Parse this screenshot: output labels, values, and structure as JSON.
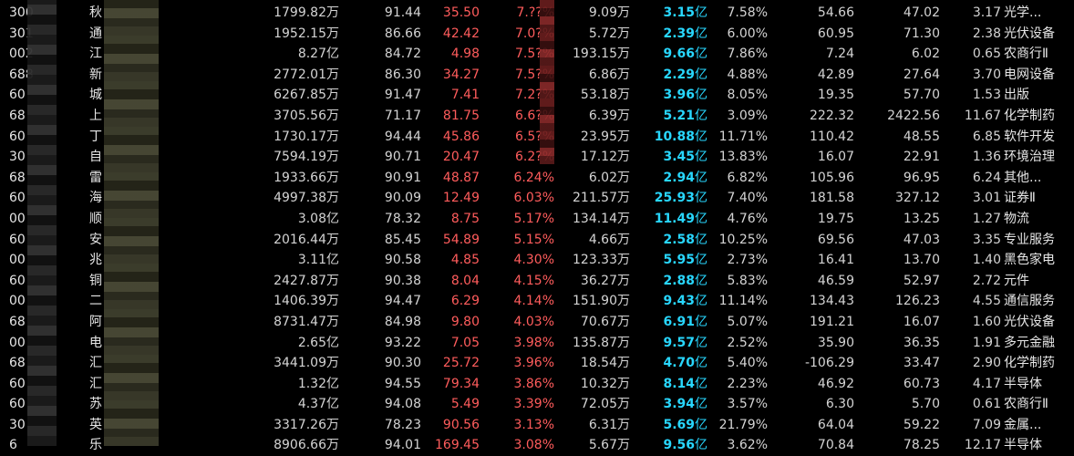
{
  "colors": {
    "background": "#000000",
    "text": "#d4d4d4",
    "up_red": "#ff5c5c",
    "cap_cyan": "#28d7ff"
  },
  "rows": [
    {
      "code": "300",
      "name": "秋",
      "amount": "1799.82万",
      "v1": "91.44",
      "price": "35.50",
      "pct": "7.??%",
      "vol": "9.09万",
      "cap": "3.15",
      "cap_unit": "亿",
      "rate": "7.58%",
      "m1": "54.66",
      "m2": "47.02",
      "m3": "3.17",
      "industry": "光学..."
    },
    {
      "code": "301",
      "name": "通",
      "amount": "1952.15万",
      "v1": "86.66",
      "price": "42.42",
      "pct": "7.0?%",
      "vol": "5.72万",
      "cap": "2.39",
      "cap_unit": "亿",
      "rate": "6.00%",
      "m1": "60.95",
      "m2": "71.30",
      "m3": "2.38",
      "industry": "光伏设备"
    },
    {
      "code": "002",
      "name": "江",
      "amount": "8.27亿",
      "v1": "84.72",
      "price": "4.98",
      "pct": "7.5?%",
      "vol": "193.15万",
      "cap": "9.66",
      "cap_unit": "亿",
      "rate": "7.86%",
      "m1": "7.24",
      "m2": "6.02",
      "m3": "0.65",
      "industry": "农商行Ⅱ"
    },
    {
      "code": "688",
      "name": "新",
      "amount": "2772.01万",
      "v1": "86.30",
      "price": "34.27",
      "pct": "7.5?%",
      "vol": "6.86万",
      "cap": "2.29",
      "cap_unit": "亿",
      "rate": "4.88%",
      "m1": "42.89",
      "m2": "27.64",
      "m3": "3.70",
      "industry": "电网设备"
    },
    {
      "code": "60",
      "name": "城",
      "amount": "6267.85万",
      "v1": "91.47",
      "price": "7.41",
      "pct": "7.2?%",
      "vol": "53.18万",
      "cap": "3.96",
      "cap_unit": "亿",
      "rate": "8.05%",
      "m1": "19.35",
      "m2": "57.70",
      "m3": "1.53",
      "industry": "出版"
    },
    {
      "code": "68",
      "name": "上",
      "amount": "3705.56万",
      "v1": "71.17",
      "price": "81.75",
      "pct": "6.6?%",
      "vol": "6.39万",
      "cap": "5.21",
      "cap_unit": "亿",
      "rate": "3.09%",
      "m1": "222.32",
      "m2": "2422.56",
      "m3": "11.67",
      "industry": "化学制药"
    },
    {
      "code": "60",
      "name": "丁",
      "amount": "1730.17万",
      "v1": "94.44",
      "price": "45.86",
      "pct": "6.5?%",
      "vol": "23.95万",
      "cap": "10.88",
      "cap_unit": "亿",
      "rate": "11.71%",
      "m1": "110.42",
      "m2": "48.55",
      "m3": "6.85",
      "industry": "软件开发"
    },
    {
      "code": "30",
      "name": "自",
      "amount": "7594.19万",
      "v1": "90.71",
      "price": "20.47",
      "pct": "6.2?%",
      "vol": "17.12万",
      "cap": "3.45",
      "cap_unit": "亿",
      "rate": "13.83%",
      "m1": "16.07",
      "m2": "22.91",
      "m3": "1.36",
      "industry": "环境治理"
    },
    {
      "code": "68",
      "name": "雷",
      "amount": "1933.66万",
      "v1": "90.91",
      "price": "48.87",
      "pct": "6.24%",
      "vol": "6.02万",
      "cap": "2.94",
      "cap_unit": "亿",
      "rate": "6.82%",
      "m1": "105.96",
      "m2": "96.95",
      "m3": "6.24",
      "industry": "其他..."
    },
    {
      "code": "60",
      "name": "海",
      "amount": "4997.38万",
      "v1": "90.09",
      "price": "12.49",
      "pct": "6.03%",
      "vol": "211.57万",
      "cap": "25.93",
      "cap_unit": "亿",
      "rate": "7.40%",
      "m1": "181.58",
      "m2": "327.12",
      "m3": "3.01",
      "industry": "证券Ⅱ"
    },
    {
      "code": "00",
      "name": "顺",
      "amount": "3.08亿",
      "v1": "78.32",
      "price": "8.75",
      "pct": "5.17%",
      "vol": "134.14万",
      "cap": "11.49",
      "cap_unit": "亿",
      "rate": "4.76%",
      "m1": "19.75",
      "m2": "13.25",
      "m3": "1.27",
      "industry": "物流"
    },
    {
      "code": "60",
      "name": "安",
      "amount": "2016.44万",
      "v1": "85.45",
      "price": "54.89",
      "pct": "5.15%",
      "vol": "4.66万",
      "cap": "2.58",
      "cap_unit": "亿",
      "rate": "10.25%",
      "m1": "69.56",
      "m2": "47.03",
      "m3": "3.35",
      "industry": "专业服务"
    },
    {
      "code": "00",
      "name": "兆",
      "amount": "3.11亿",
      "v1": "90.58",
      "price": "4.85",
      "pct": "4.30%",
      "vol": "123.33万",
      "cap": "5.95",
      "cap_unit": "亿",
      "rate": "2.73%",
      "m1": "16.41",
      "m2": "13.70",
      "m3": "1.40",
      "industry": "黑色家电"
    },
    {
      "code": "60",
      "name": "铜",
      "amount": "2427.87万",
      "v1": "90.38",
      "price": "8.04",
      "pct": "4.15%",
      "vol": "36.27万",
      "cap": "2.88",
      "cap_unit": "亿",
      "rate": "5.83%",
      "m1": "46.59",
      "m2": "52.97",
      "m3": "2.72",
      "industry": "元件"
    },
    {
      "code": "00",
      "name": "二",
      "amount": "1406.39万",
      "v1": "94.47",
      "price": "6.29",
      "pct": "4.14%",
      "vol": "151.90万",
      "cap": "9.43",
      "cap_unit": "亿",
      "rate": "11.14%",
      "m1": "134.43",
      "m2": "126.23",
      "m3": "4.55",
      "industry": "通信服务"
    },
    {
      "code": "68",
      "name": "阿",
      "amount": "8731.47万",
      "v1": "84.98",
      "price": "9.80",
      "pct": "4.03%",
      "vol": "70.67万",
      "cap": "6.91",
      "cap_unit": "亿",
      "rate": "5.07%",
      "m1": "191.21",
      "m2": "16.07",
      "m3": "1.60",
      "industry": "光伏设备"
    },
    {
      "code": "00",
      "name": "电",
      "amount": "2.65亿",
      "v1": "93.22",
      "price": "7.05",
      "pct": "3.98%",
      "vol": "135.87万",
      "cap": "9.57",
      "cap_unit": "亿",
      "rate": "2.52%",
      "m1": "35.90",
      "m2": "36.35",
      "m3": "1.91",
      "industry": "多元金融"
    },
    {
      "code": "68",
      "name": "汇",
      "amount": "3441.09万",
      "v1": "90.30",
      "price": "25.72",
      "pct": "3.96%",
      "vol": "18.54万",
      "cap": "4.70",
      "cap_unit": "亿",
      "rate": "5.40%",
      "m1": "-106.29",
      "m2": "33.47",
      "m3": "2.90",
      "industry": "化学制药"
    },
    {
      "code": "60",
      "name": "汇",
      "amount": "1.32亿",
      "v1": "94.55",
      "price": "79.34",
      "pct": "3.86%",
      "vol": "10.32万",
      "cap": "8.14",
      "cap_unit": "亿",
      "rate": "2.23%",
      "m1": "46.92",
      "m2": "60.73",
      "m3": "4.17",
      "industry": "半导体"
    },
    {
      "code": "60",
      "name": "苏",
      "amount": "4.37亿",
      "v1": "94.08",
      "price": "5.49",
      "pct": "3.39%",
      "vol": "72.05万",
      "cap": "3.94",
      "cap_unit": "亿",
      "rate": "3.57%",
      "m1": "6.30",
      "m2": "5.70",
      "m3": "0.61",
      "industry": "农商行Ⅱ"
    },
    {
      "code": "30",
      "name": "英",
      "amount": "3317.26万",
      "v1": "78.23",
      "price": "90.56",
      "pct": "3.13%",
      "vol": "6.31万",
      "cap": "5.69",
      "cap_unit": "亿",
      "rate": "21.79%",
      "m1": "64.04",
      "m2": "59.22",
      "m3": "7.09",
      "industry": "金属..."
    },
    {
      "code": "6",
      "name": "乐",
      "amount": "8906.66万",
      "v1": "94.01",
      "price": "169.45",
      "pct": "3.08%",
      "vol": "5.67万",
      "cap": "9.56",
      "cap_unit": "亿",
      "rate": "3.62%",
      "m1": "70.84",
      "m2": "78.25",
      "m3": "12.17",
      "industry": "半导体"
    }
  ]
}
